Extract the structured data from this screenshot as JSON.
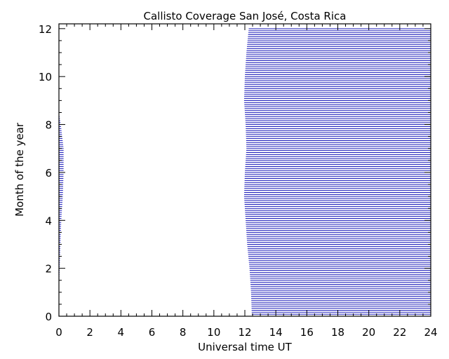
{
  "chart_data": {
    "type": "area",
    "title": "Callisto Coverage San José, Costa Rica",
    "xlabel": "Universal time UT",
    "ylabel": "Month of the year",
    "xlim": [
      0,
      24
    ],
    "ylim": [
      0,
      12.2
    ],
    "x_ticks": [
      "0",
      "2",
      "4",
      "6",
      "8",
      "10",
      "12",
      "14",
      "16",
      "18",
      "20",
      "22",
      "24"
    ],
    "y_ticks": [
      "0",
      "2",
      "4",
      "6",
      "8",
      "10",
      "12"
    ],
    "grid": false,
    "coverage_color": "#1a1ab8",
    "band_step_month": 0.0833,
    "series": [
      {
        "description_key": "evening_coverage_start_ut",
        "points": [
          {
            "month": 0.0,
            "ut": 12.45
          },
          {
            "month": 1.0,
            "ut": 12.4
          },
          {
            "month": 2.0,
            "ut": 12.3
          },
          {
            "month": 3.0,
            "ut": 12.15
          },
          {
            "month": 4.0,
            "ut": 12.05
          },
          {
            "month": 5.0,
            "ut": 11.95
          },
          {
            "month": 6.0,
            "ut": 12.0
          },
          {
            "month": 7.0,
            "ut": 12.1
          },
          {
            "month": 8.0,
            "ut": 12.05
          },
          {
            "month": 9.0,
            "ut": 11.95
          },
          {
            "month": 10.0,
            "ut": 12.0
          },
          {
            "month": 11.0,
            "ut": 12.1
          },
          {
            "month": 12.0,
            "ut": 12.25
          }
        ]
      },
      {
        "description_key": "early_coverage_end_ut",
        "points": [
          {
            "month": 1.0,
            "ut": 0.0
          },
          {
            "month": 2.0,
            "ut": 0.05
          },
          {
            "month": 3.0,
            "ut": 0.1
          },
          {
            "month": 4.0,
            "ut": 0.15
          },
          {
            "month": 5.0,
            "ut": 0.25
          },
          {
            "month": 6.0,
            "ut": 0.3
          },
          {
            "month": 7.0,
            "ut": 0.3
          },
          {
            "month": 8.0,
            "ut": 0.12
          },
          {
            "month": 8.5,
            "ut": 0.0
          }
        ]
      }
    ]
  }
}
